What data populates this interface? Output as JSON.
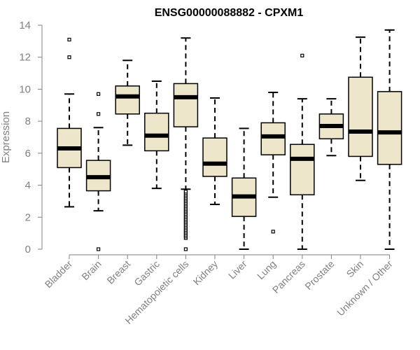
{
  "chart_data": {
    "type": "boxplot",
    "title": "ENSG00000088882 - CPXM1",
    "ylabel": "Expression",
    "xlabel": "",
    "ylim": [
      0,
      14
    ],
    "yticks": [
      0,
      2,
      4,
      6,
      8,
      10,
      12,
      14
    ],
    "colors": {
      "box_fill": "#ede6cb",
      "stroke": "#000000",
      "axis": "#808080"
    },
    "categories": [
      "Bladder",
      "Brain",
      "Breast",
      "Gastric",
      "Hematopoietic cells",
      "Kidney",
      "Liver",
      "Lung",
      "Pancreas",
      "Prostate",
      "Skin",
      "Unknown / Other"
    ],
    "boxes": [
      {
        "category": "Bladder",
        "whisker_low": 2.65,
        "q1": 5.1,
        "median": 6.3,
        "q3": 7.55,
        "whisker_high": 9.7,
        "outliers": [
          12.0,
          13.1
        ]
      },
      {
        "category": "Brain",
        "whisker_low": 2.4,
        "q1": 3.65,
        "median": 4.5,
        "q3": 5.55,
        "whisker_high": 7.6,
        "outliers": [
          0.0,
          8.45,
          9.7
        ]
      },
      {
        "category": "Breast",
        "whisker_low": 6.5,
        "q1": 8.45,
        "median": 9.55,
        "q3": 10.2,
        "whisker_high": 11.8,
        "outliers": []
      },
      {
        "category": "Gastric",
        "whisker_low": 3.8,
        "q1": 6.15,
        "median": 7.1,
        "q3": 8.5,
        "whisker_high": 10.5,
        "outliers": []
      },
      {
        "category": "Hematopoietic cells",
        "whisker_low": 3.75,
        "q1": 7.65,
        "median": 9.5,
        "q3": 10.35,
        "whisker_high": 13.2,
        "outliers": [
          0.0,
          0.7,
          0.8,
          0.9,
          1.0,
          1.1,
          1.2,
          1.3,
          1.4,
          1.5,
          1.6,
          1.7,
          1.8,
          1.9,
          2.0,
          2.1,
          2.2,
          2.3,
          2.4,
          2.5,
          2.6,
          2.7,
          2.8,
          2.9,
          3.0,
          3.1,
          3.2,
          3.3,
          3.4,
          3.5,
          3.6
        ]
      },
      {
        "category": "Kidney",
        "whisker_low": 2.8,
        "q1": 4.55,
        "median": 5.35,
        "q3": 6.95,
        "whisker_high": 9.45,
        "outliers": []
      },
      {
        "category": "Liver",
        "whisker_low": 0.0,
        "q1": 2.05,
        "median": 3.3,
        "q3": 4.45,
        "whisker_high": 7.55,
        "outliers": []
      },
      {
        "category": "Lung",
        "whisker_low": 3.25,
        "q1": 5.9,
        "median": 7.05,
        "q3": 7.9,
        "whisker_high": 9.8,
        "outliers": [
          1.1
        ]
      },
      {
        "category": "Pancreas",
        "whisker_low": 0.0,
        "q1": 3.4,
        "median": 5.65,
        "q3": 6.55,
        "whisker_high": 9.4,
        "outliers": [
          12.1
        ]
      },
      {
        "category": "Prostate",
        "whisker_low": 5.85,
        "q1": 6.9,
        "median": 7.7,
        "q3": 8.45,
        "whisker_high": 9.4,
        "outliers": []
      },
      {
        "category": "Skin",
        "whisker_low": 4.3,
        "q1": 5.8,
        "median": 7.35,
        "q3": 10.75,
        "whisker_high": 13.25,
        "outliers": []
      },
      {
        "category": "Unknown / Other",
        "whisker_low": 0.0,
        "q1": 5.3,
        "median": 7.3,
        "q3": 9.85,
        "whisker_high": 13.7,
        "outliers": []
      }
    ]
  }
}
